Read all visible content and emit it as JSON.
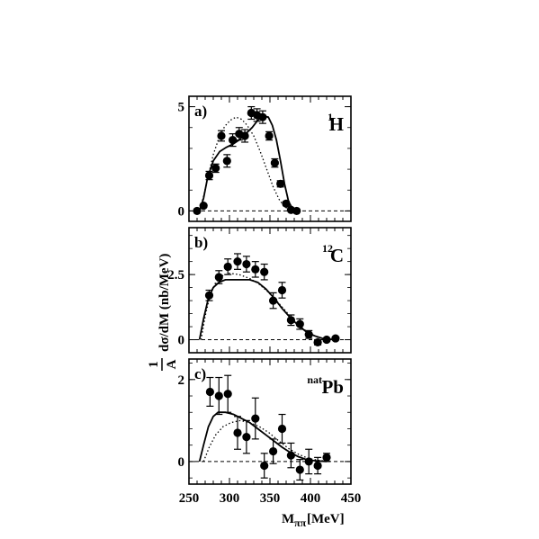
{
  "xlabel": {
    "main": "M",
    "sub": "ππ",
    "unit": "[MeV]"
  },
  "ylabel": {
    "frac_num": "1",
    "frac_den": "A",
    "text": "dσ/dM (nb/MeV)"
  },
  "x_ticks": [
    "250",
    "300",
    "350",
    "400",
    "450"
  ],
  "chart_data": [
    {
      "type": "scatter",
      "panel_label": "a)",
      "nucleus": {
        "sup": "1",
        "symbol": "H"
      },
      "xlim": [
        250,
        450
      ],
      "ylim": [
        -0.5,
        5.5
      ],
      "y_ticks": [
        {
          "value": 0,
          "label": "0"
        },
        {
          "value": 5,
          "label": "5"
        }
      ],
      "zero_line": "dashed",
      "points": [
        {
          "x": 260,
          "y": 0.0,
          "err": 0.0
        },
        {
          "x": 268,
          "y": 0.25,
          "err": 0.0
        },
        {
          "x": 275,
          "y": 1.7,
          "err": 0.2
        },
        {
          "x": 283,
          "y": 2.05,
          "err": 0.2
        },
        {
          "x": 290,
          "y": 3.6,
          "err": 0.25
        },
        {
          "x": 297,
          "y": 2.4,
          "err": 0.3
        },
        {
          "x": 304,
          "y": 3.4,
          "err": 0.3
        },
        {
          "x": 312,
          "y": 3.7,
          "err": 0.3
        },
        {
          "x": 319,
          "y": 3.6,
          "err": 0.3
        },
        {
          "x": 327,
          "y": 4.7,
          "err": 0.3
        },
        {
          "x": 334,
          "y": 4.6,
          "err": 0.3
        },
        {
          "x": 341,
          "y": 4.5,
          "err": 0.3
        },
        {
          "x": 349,
          "y": 3.6,
          "err": 0.2
        },
        {
          "x": 356,
          "y": 2.3,
          "err": 0.2
        },
        {
          "x": 363,
          "y": 1.3,
          "err": 0.15
        },
        {
          "x": 370,
          "y": 0.35,
          "err": 0.1
        },
        {
          "x": 376,
          "y": 0.05,
          "err": 0.0
        },
        {
          "x": 383,
          "y": 0.0,
          "err": 0.0
        }
      ],
      "solid_curve": [
        [
          263,
          0
        ],
        [
          268,
          0.6
        ],
        [
          273,
          1.6
        ],
        [
          280,
          2.4
        ],
        [
          288,
          2.85
        ],
        [
          296,
          3.05
        ],
        [
          304,
          3.2
        ],
        [
          312,
          3.4
        ],
        [
          320,
          3.7
        ],
        [
          328,
          4.0
        ],
        [
          335,
          4.35
        ],
        [
          342,
          4.55
        ],
        [
          348,
          4.5
        ],
        [
          353,
          4.1
        ],
        [
          358,
          3.4
        ],
        [
          363,
          2.4
        ],
        [
          368,
          1.3
        ],
        [
          373,
          0.45
        ],
        [
          378,
          0.1
        ],
        [
          382,
          0
        ]
      ],
      "dotted_curve": [
        [
          263,
          0
        ],
        [
          268,
          0.7
        ],
        [
          274,
          1.7
        ],
        [
          280,
          2.7
        ],
        [
          287,
          3.5
        ],
        [
          294,
          4.05
        ],
        [
          301,
          4.35
        ],
        [
          308,
          4.5
        ],
        [
          315,
          4.4
        ],
        [
          322,
          4.1
        ],
        [
          330,
          3.6
        ],
        [
          338,
          2.85
        ],
        [
          346,
          2.0
        ],
        [
          354,
          1.15
        ],
        [
          362,
          0.5
        ],
        [
          370,
          0.15
        ],
        [
          378,
          0
        ]
      ]
    },
    {
      "type": "scatter",
      "panel_label": "b)",
      "nucleus": {
        "sup": "12",
        "symbol": "C"
      },
      "xlim": [
        250,
        450
      ],
      "ylim": [
        -0.5,
        4.3
      ],
      "y_ticks": [
        {
          "value": 0,
          "label": "0"
        },
        {
          "value": 2.5,
          "label": "2.5"
        }
      ],
      "zero_line": "dashed",
      "points": [
        {
          "x": 275,
          "y": 1.7,
          "err": 0.2
        },
        {
          "x": 287,
          "y": 2.4,
          "err": 0.25
        },
        {
          "x": 298,
          "y": 2.8,
          "err": 0.3
        },
        {
          "x": 310,
          "y": 3.0,
          "err": 0.3
        },
        {
          "x": 321,
          "y": 2.9,
          "err": 0.3
        },
        {
          "x": 332,
          "y": 2.7,
          "err": 0.3
        },
        {
          "x": 343,
          "y": 2.6,
          "err": 0.3
        },
        {
          "x": 354,
          "y": 1.5,
          "err": 0.3
        },
        {
          "x": 365,
          "y": 1.9,
          "err": 0.3
        },
        {
          "x": 376,
          "y": 0.75,
          "err": 0.2
        },
        {
          "x": 387,
          "y": 0.6,
          "err": 0.2
        },
        {
          "x": 398,
          "y": 0.2,
          "err": 0.15
        },
        {
          "x": 409,
          "y": -0.1,
          "err": 0.1
        },
        {
          "x": 420,
          "y": 0.0,
          "err": 0.05
        },
        {
          "x": 431,
          "y": 0.05,
          "err": 0.05
        }
      ],
      "solid_curve": [
        [
          263,
          0
        ],
        [
          268,
          0.8
        ],
        [
          274,
          1.6
        ],
        [
          280,
          2.0
        ],
        [
          287,
          2.2
        ],
        [
          295,
          2.3
        ],
        [
          310,
          2.3
        ],
        [
          325,
          2.3
        ],
        [
          335,
          2.2
        ],
        [
          345,
          1.95
        ],
        [
          355,
          1.6
        ],
        [
          365,
          1.2
        ],
        [
          375,
          0.85
        ],
        [
          385,
          0.55
        ],
        [
          395,
          0.3
        ],
        [
          405,
          0.15
        ],
        [
          415,
          0.05
        ],
        [
          430,
          0
        ]
      ],
      "dotted_curve": [
        [
          265,
          0
        ],
        [
          270,
          0.9
        ],
        [
          276,
          1.7
        ],
        [
          283,
          2.2
        ],
        [
          291,
          2.45
        ],
        [
          300,
          2.55
        ],
        [
          312,
          2.5
        ],
        [
          325,
          2.35
        ],
        [
          336,
          2.15
        ],
        [
          347,
          1.85
        ],
        [
          358,
          1.5
        ],
        [
          368,
          1.15
        ],
        [
          378,
          0.8
        ],
        [
          388,
          0.5
        ],
        [
          398,
          0.25
        ],
        [
          408,
          0.1
        ],
        [
          420,
          0.03
        ],
        [
          432,
          0
        ]
      ]
    },
    {
      "type": "scatter",
      "panel_label": "c)",
      "nucleus": {
        "sup": "nat",
        "symbol": "Pb"
      },
      "xlim": [
        250,
        450
      ],
      "ylim": [
        -0.55,
        2.5
      ],
      "y_ticks": [
        {
          "value": 0,
          "label": "0"
        },
        {
          "value": 2,
          "label": "2"
        }
      ],
      "zero_line": "dashed",
      "points": [
        {
          "x": 276,
          "y": 1.7,
          "err": 0.35
        },
        {
          "x": 287,
          "y": 1.6,
          "err": 0.45
        },
        {
          "x": 298,
          "y": 1.65,
          "err": 0.45
        },
        {
          "x": 310,
          "y": 0.7,
          "err": 0.4
        },
        {
          "x": 321,
          "y": 0.6,
          "err": 0.4
        },
        {
          "x": 332,
          "y": 1.05,
          "err": 0.5
        },
        {
          "x": 343,
          "y": -0.1,
          "err": 0.3
        },
        {
          "x": 354,
          "y": 0.25,
          "err": 0.3
        },
        {
          "x": 365,
          "y": 0.8,
          "err": 0.35
        },
        {
          "x": 376,
          "y": 0.15,
          "err": 0.3
        },
        {
          "x": 387,
          "y": -0.2,
          "err": 0.25
        },
        {
          "x": 398,
          "y": 0.0,
          "err": 0.3
        },
        {
          "x": 409,
          "y": -0.1,
          "err": 0.2
        },
        {
          "x": 420,
          "y": 0.1,
          "err": 0.1
        }
      ],
      "solid_curve": [
        [
          263,
          0
        ],
        [
          268,
          0.4
        ],
        [
          274,
          0.85
        ],
        [
          280,
          1.1
        ],
        [
          286,
          1.2
        ],
        [
          295,
          1.2
        ],
        [
          305,
          1.15
        ],
        [
          315,
          1.05
        ],
        [
          325,
          0.95
        ],
        [
          335,
          0.8
        ],
        [
          345,
          0.65
        ],
        [
          355,
          0.5
        ],
        [
          365,
          0.35
        ],
        [
          375,
          0.22
        ],
        [
          385,
          0.12
        ],
        [
          395,
          0.05
        ],
        [
          405,
          0.02
        ],
        [
          420,
          0
        ]
      ],
      "dotted_curve": [
        [
          268,
          0
        ],
        [
          275,
          0.35
        ],
        [
          283,
          0.65
        ],
        [
          292,
          0.85
        ],
        [
          302,
          0.95
        ],
        [
          313,
          1.0
        ],
        [
          325,
          0.95
        ],
        [
          337,
          0.85
        ],
        [
          349,
          0.7
        ],
        [
          361,
          0.5
        ],
        [
          373,
          0.32
        ],
        [
          385,
          0.18
        ],
        [
          397,
          0.08
        ],
        [
          410,
          0.03
        ],
        [
          425,
          0
        ]
      ]
    }
  ]
}
